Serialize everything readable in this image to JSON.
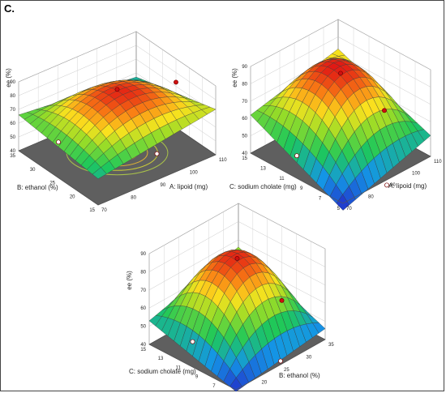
{
  "figure": {
    "panel_label": "C."
  },
  "chart_data": [
    {
      "type": "surface",
      "zlabel": "ee (%)",
      "zticks": [
        40,
        50,
        60,
        70,
        80,
        90
      ],
      "zlim": [
        40,
        90
      ],
      "x": {
        "label": "A: lipoid (mg)",
        "ticks": [
          70,
          80,
          90,
          100,
          110
        ],
        "range": [
          70,
          110
        ]
      },
      "y": {
        "label": "B: ethanol (%)",
        "ticks": [
          15,
          20,
          25,
          30,
          35
        ],
        "range": [
          15,
          35
        ]
      },
      "peak": 86,
      "corners": {
        "back": 57,
        "right": 73,
        "front": 59,
        "left": 66
      },
      "design_points": [
        86,
        73,
        66,
        59
      ],
      "contour_levels": [
        65,
        70,
        75,
        80,
        85
      ],
      "colormap_range": [
        46,
        86
      ],
      "base_color": "#5f5f5f"
    },
    {
      "type": "surface",
      "zlabel": "ee (%)",
      "zticks": [
        40,
        50,
        60,
        70,
        80,
        90
      ],
      "zlim": [
        40,
        90
      ],
      "x": {
        "label": "A: lipoid (mg)",
        "ticks": [
          70,
          80,
          90,
          100,
          110
        ],
        "range": [
          70,
          110
        ]
      },
      "y": {
        "label": "C: sodium cholate (mg)",
        "ticks": [
          5,
          7,
          9,
          11,
          13,
          15
        ],
        "range": [
          5,
          15
        ]
      },
      "peak": 87,
      "corners": {
        "back": 73,
        "right": 52,
        "front": 36,
        "left": 62
      },
      "design_points": [
        87,
        52,
        53,
        37
      ],
      "contour_levels": [
        50,
        60,
        70,
        80
      ],
      "colormap_range": [
        36,
        87
      ],
      "base_color": "#5f5f5f"
    },
    {
      "type": "surface",
      "zlabel": "ee (%)",
      "zticks": [
        40,
        50,
        60,
        70,
        80,
        90
      ],
      "zlim": [
        40,
        90
      ],
      "x": {
        "label": "B: ethanol (%)",
        "ticks": [
          15,
          20,
          25,
          30,
          35
        ],
        "range": [
          15,
          35
        ]
      },
      "y": {
        "label": "C: sodium cholate (mg)",
        "ticks": [
          5,
          7,
          9,
          11,
          13,
          15
        ],
        "range": [
          5,
          15
        ]
      },
      "peak": 86,
      "corners": {
        "back": 66,
        "right": 46,
        "front": 39,
        "left": 53
      },
      "design_points": [
        86,
        49,
        54,
        42
      ],
      "contour_levels": [
        50,
        60,
        70,
        80
      ],
      "colormap_range": [
        38,
        86
      ],
      "base_color": "#5f5f5f"
    }
  ]
}
